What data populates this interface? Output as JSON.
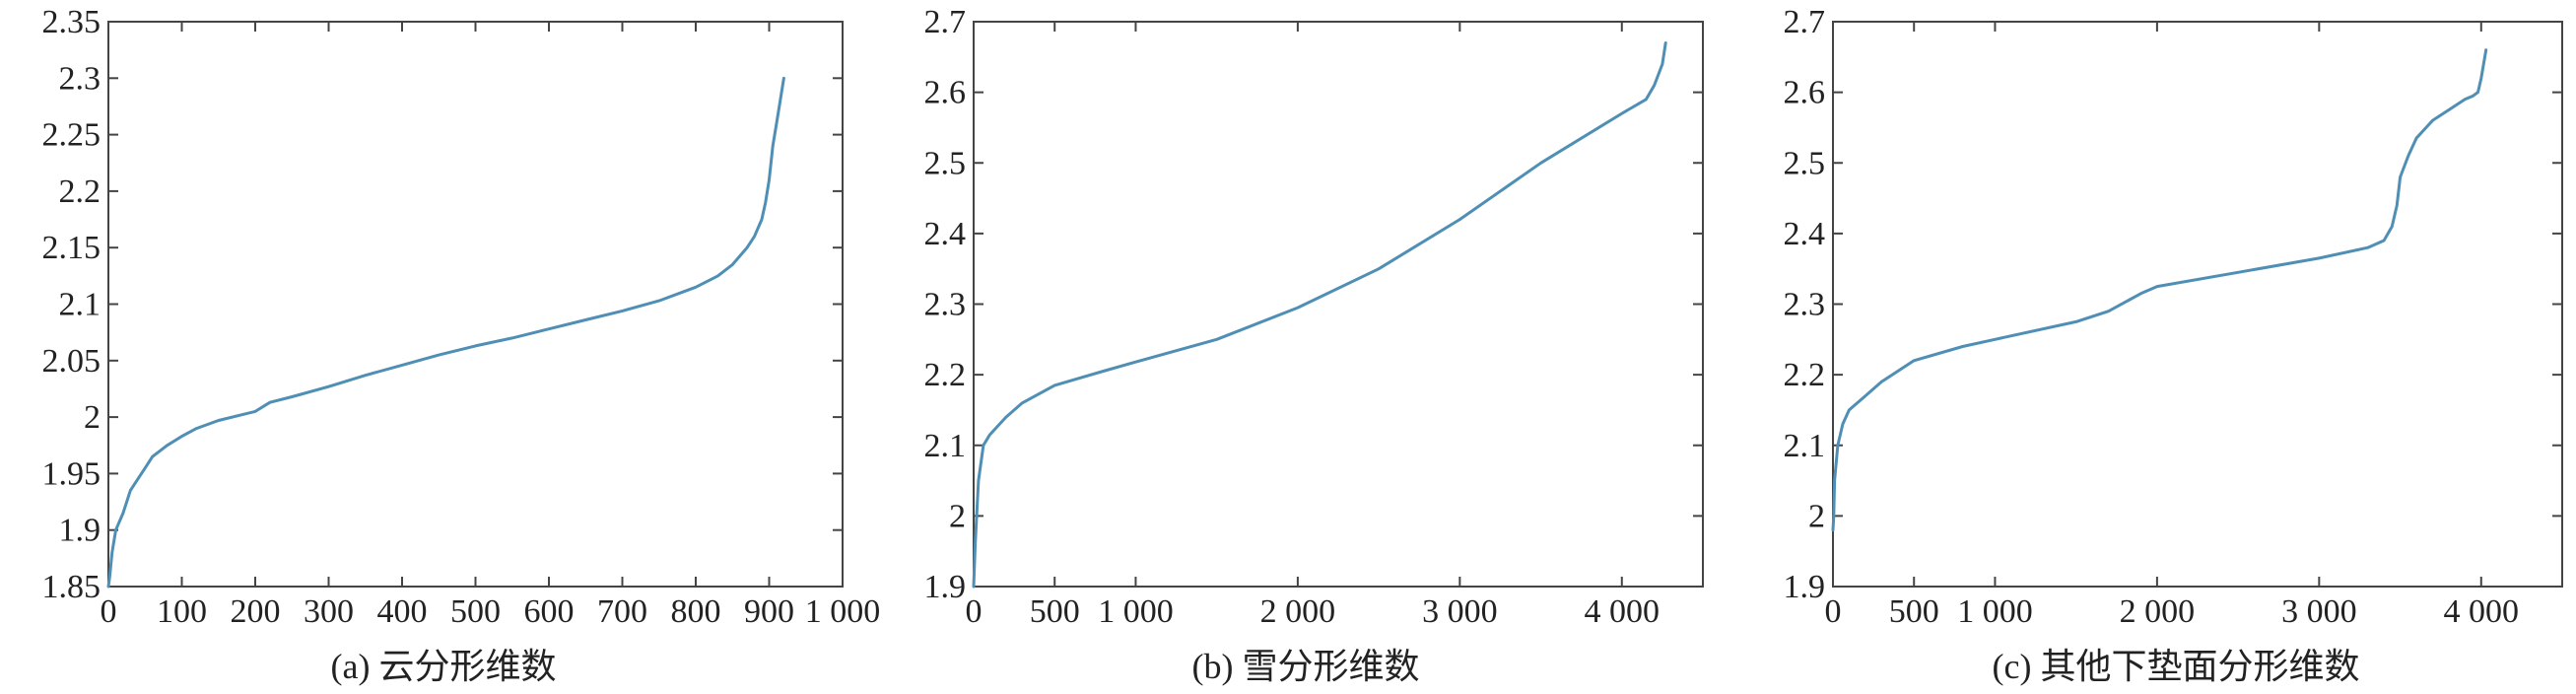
{
  "chart_data": [
    {
      "type": "line",
      "title": "",
      "caption": "(a) 云分形维数",
      "xlabel": "",
      "ylabel": "",
      "xlim": [
        0,
        1000
      ],
      "ylim": [
        1.85,
        2.35
      ],
      "xticks": [
        0,
        100,
        200,
        300,
        400,
        500,
        600,
        700,
        800,
        900,
        1000
      ],
      "xtick_labels": [
        "0",
        "100",
        "200",
        "300",
        "400",
        "500",
        "600",
        "700",
        "800",
        "900",
        "1 000"
      ],
      "yticks": [
        1.85,
        1.9,
        1.95,
        2,
        2.05,
        2.1,
        2.15,
        2.2,
        2.25,
        2.3,
        2.35
      ],
      "ytick_labels": [
        "1.85",
        "1.9",
        "1.95",
        "2",
        "2.05",
        "2.1",
        "2.15",
        "2.2",
        "2.25",
        "2.3",
        "2.35"
      ],
      "grid": false,
      "series": [
        {
          "color": "#4f8fb5",
          "x": [
            0,
            2,
            5,
            10,
            20,
            30,
            40,
            50,
            60,
            80,
            100,
            120,
            150,
            200,
            220,
            250,
            300,
            350,
            400,
            450,
            500,
            550,
            600,
            650,
            700,
            750,
            800,
            830,
            850,
            870,
            880,
            890,
            895,
            900,
            905,
            910,
            915,
            920
          ],
          "y": [
            1.85,
            1.86,
            1.88,
            1.9,
            1.915,
            1.935,
            1.945,
            1.955,
            1.965,
            1.975,
            1.983,
            1.99,
            1.997,
            2.005,
            2.013,
            2.018,
            2.027,
            2.037,
            2.046,
            2.055,
            2.063,
            2.07,
            2.078,
            2.086,
            2.094,
            2.103,
            2.115,
            2.125,
            2.135,
            2.15,
            2.16,
            2.175,
            2.19,
            2.21,
            2.24,
            2.26,
            2.28,
            2.3
          ]
        }
      ]
    },
    {
      "type": "line",
      "title": "",
      "caption": "(b) 雪分形维数",
      "xlabel": "",
      "ylabel": "",
      "xlim": [
        0,
        4500
      ],
      "ylim": [
        1.9,
        2.7
      ],
      "xticks": [
        0,
        500,
        1000,
        2000,
        3000,
        4000
      ],
      "xtick_labels": [
        "0",
        "500",
        "1 000",
        "2 000",
        "3 000",
        "4 000"
      ],
      "yticks": [
        1.9,
        2,
        2.1,
        2.2,
        2.3,
        2.4,
        2.5,
        2.6,
        2.7
      ],
      "ytick_labels": [
        "1.9",
        "2",
        "2.1",
        "2.2",
        "2.3",
        "2.4",
        "2.5",
        "2.6",
        "2.7"
      ],
      "grid": false,
      "series": [
        {
          "color": "#4f8fb5",
          "x": [
            0,
            10,
            30,
            60,
            100,
            200,
            300,
            500,
            800,
            1000,
            1500,
            2000,
            2500,
            3000,
            3500,
            4000,
            4150,
            4200,
            4250,
            4270
          ],
          "y": [
            1.9,
            1.96,
            2.05,
            2.1,
            2.115,
            2.14,
            2.16,
            2.185,
            2.205,
            2.218,
            2.25,
            2.295,
            2.35,
            2.42,
            2.5,
            2.57,
            2.59,
            2.61,
            2.64,
            2.67
          ]
        }
      ]
    },
    {
      "type": "line",
      "title": "",
      "caption": "(c) 其他下垫面分形维数",
      "xlabel": "",
      "ylabel": "",
      "xlim": [
        0,
        4500
      ],
      "ylim": [
        1.9,
        2.7
      ],
      "xticks": [
        0,
        500,
        1000,
        2000,
        3000,
        4000
      ],
      "xtick_labels": [
        "0",
        "500",
        "1 000",
        "2 000",
        "3 000",
        "4 000"
      ],
      "yticks": [
        1.9,
        2,
        2.1,
        2.2,
        2.3,
        2.4,
        2.5,
        2.6,
        2.7
      ],
      "ytick_labels": [
        "1.9",
        "2",
        "2.1",
        "2.2",
        "2.3",
        "2.4",
        "2.5",
        "2.6",
        "2.7"
      ],
      "grid": false,
      "series": [
        {
          "color": "#4f8fb5",
          "x": [
            0,
            5,
            10,
            30,
            60,
            100,
            200,
            300,
            500,
            800,
            1000,
            1500,
            1700,
            1900,
            2000,
            2500,
            3000,
            3300,
            3400,
            3450,
            3480,
            3500,
            3550,
            3600,
            3700,
            3800,
            3900,
            3950,
            3980,
            4000,
            4030
          ],
          "y": [
            1.98,
            2.0,
            2.05,
            2.1,
            2.13,
            2.15,
            2.17,
            2.19,
            2.22,
            2.24,
            2.25,
            2.275,
            2.29,
            2.315,
            2.325,
            2.345,
            2.365,
            2.38,
            2.39,
            2.41,
            2.44,
            2.48,
            2.51,
            2.535,
            2.56,
            2.575,
            2.59,
            2.595,
            2.6,
            2.62,
            2.66
          ]
        }
      ]
    }
  ]
}
